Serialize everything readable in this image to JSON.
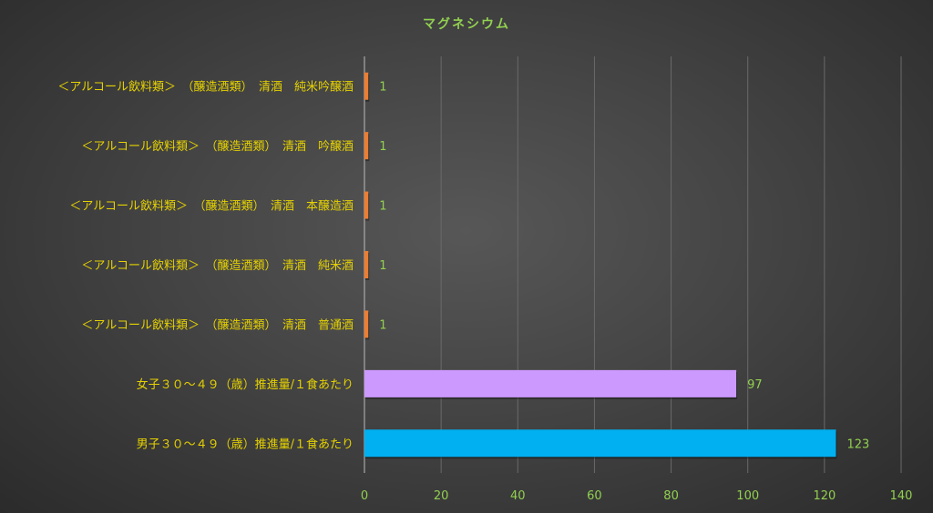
{
  "chart_data": {
    "type": "bar",
    "orientation": "horizontal",
    "title": "マグネシウム",
    "categories": [
      "＜アルコール飲料類＞　（醸造酒類）　清酒　純米吟醸酒",
      "＜アルコール飲料類＞　（醸造酒類）　清酒　吟醸酒",
      "＜アルコール飲料類＞　（醸造酒類）　清酒　本醸造酒",
      "＜アルコール飲料類＞　（醸造酒類）　清酒　純米酒",
      "＜アルコール飲料類＞　（醸造酒類）　清酒　普通酒",
      "女子３０～４９（歳）推進量/１食あたり",
      "男子３０～４９（歳）推進量/１食あたり"
    ],
    "values": [
      1,
      1,
      1,
      1,
      1,
      97,
      123
    ],
    "bar_colors": [
      "#ed7d31",
      "#ed7d31",
      "#ed7d31",
      "#ed7d31",
      "#ed7d31",
      "#cc99ff",
      "#00b0f0"
    ],
    "xlim": [
      0,
      140
    ],
    "xticks": [
      0,
      20,
      40,
      60,
      80,
      100,
      120,
      140
    ],
    "grid": true,
    "legend": "none",
    "colors": {
      "title": "#92d050",
      "category_label": "#e6d200",
      "tick_label": "#92d050",
      "data_label": "#92d050",
      "grid": "#6a6a6a"
    }
  }
}
